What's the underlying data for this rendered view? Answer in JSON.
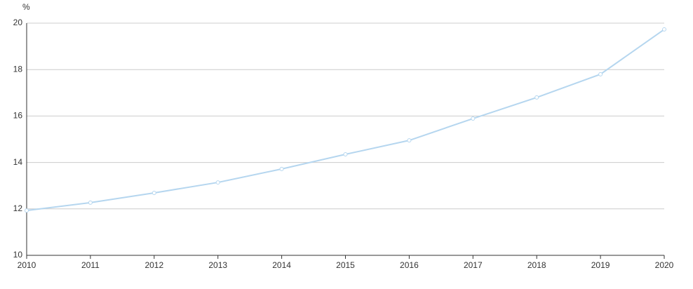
{
  "chart_data": {
    "type": "line",
    "y_label": "%",
    "x": [
      2010,
      2011,
      2012,
      2013,
      2014,
      2015,
      2016,
      2017,
      2018,
      2019,
      2020
    ],
    "series": [
      {
        "color": "#b5d6ef",
        "values": [
          11.93,
          12.27,
          12.69,
          13.14,
          13.72,
          14.35,
          14.95,
          15.89,
          16.8,
          17.8,
          19.73
        ]
      }
    ],
    "xlim": [
      2010,
      2020
    ],
    "xticks": [
      2010,
      2011,
      2012,
      2013,
      2014,
      2015,
      2016,
      2017,
      2018,
      2019,
      2020
    ],
    "ylim": [
      10,
      20
    ],
    "yticks": [
      10,
      12,
      14,
      16,
      18,
      20
    ],
    "grid": true
  }
}
